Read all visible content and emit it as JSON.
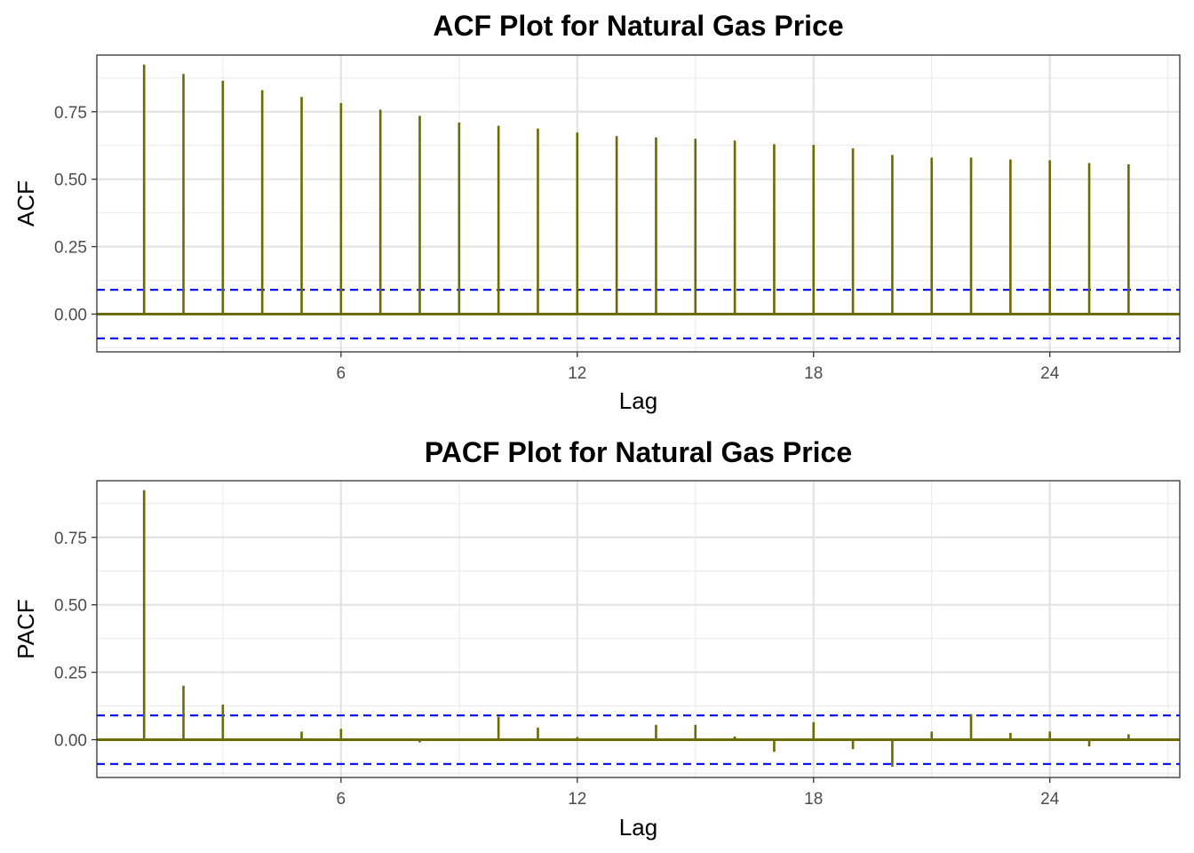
{
  "chart_data": [
    {
      "type": "bar",
      "subtype": "correlogram",
      "title": "ACF Plot for Natural Gas Price",
      "xlabel": "Lag",
      "ylabel": "ACF",
      "x": [
        1,
        2,
        3,
        4,
        5,
        6,
        7,
        8,
        9,
        10,
        11,
        12,
        13,
        14,
        15,
        16,
        17,
        18,
        19,
        20,
        21,
        22,
        23,
        24,
        25,
        26
      ],
      "values": [
        0.925,
        0.89,
        0.865,
        0.83,
        0.805,
        0.782,
        0.758,
        0.735,
        0.71,
        0.698,
        0.688,
        0.673,
        0.66,
        0.655,
        0.65,
        0.643,
        0.63,
        0.627,
        0.614,
        0.59,
        0.58,
        0.58,
        0.573,
        0.57,
        0.56,
        0.555
      ],
      "confidence_bound": 0.09,
      "xlim": [
        -0.2,
        27.3
      ],
      "ylim": [
        -0.14,
        0.96
      ],
      "xticks": [
        6,
        12,
        18,
        24
      ],
      "yticks": [
        0,
        0.25,
        0.5,
        0.75
      ],
      "ytick_labels": [
        "0.00",
        "0.25",
        "0.50",
        "0.75"
      ],
      "grid": true,
      "colors": {
        "bars": "#6b6b00",
        "bounds": "#0000ff"
      }
    },
    {
      "type": "bar",
      "subtype": "correlogram",
      "title": "PACF Plot for Natural Gas Price",
      "xlabel": "Lag",
      "ylabel": "PACF",
      "x": [
        1,
        2,
        3,
        4,
        5,
        6,
        7,
        8,
        9,
        10,
        11,
        12,
        13,
        14,
        15,
        16,
        17,
        18,
        19,
        20,
        21,
        22,
        23,
        24,
        25,
        26
      ],
      "values": [
        0.925,
        0.2,
        0.13,
        -0.005,
        0.03,
        0.04,
        0.003,
        -0.01,
        -0.005,
        0.085,
        0.045,
        0.01,
        0.002,
        0.055,
        0.055,
        0.012,
        -0.045,
        0.065,
        -0.035,
        -0.1,
        0.03,
        0.095,
        0.025,
        0.03,
        -0.025,
        0.02
      ],
      "confidence_bound": 0.09,
      "xlim": [
        -0.2,
        27.3
      ],
      "ylim": [
        -0.14,
        0.96
      ],
      "xticks": [
        6,
        12,
        18,
        24
      ],
      "yticks": [
        0,
        0.25,
        0.5,
        0.75
      ],
      "ytick_labels": [
        "0.00",
        "0.25",
        "0.50",
        "0.75"
      ],
      "grid": true,
      "colors": {
        "bars": "#6b6b00",
        "bounds": "#0000ff"
      }
    }
  ]
}
